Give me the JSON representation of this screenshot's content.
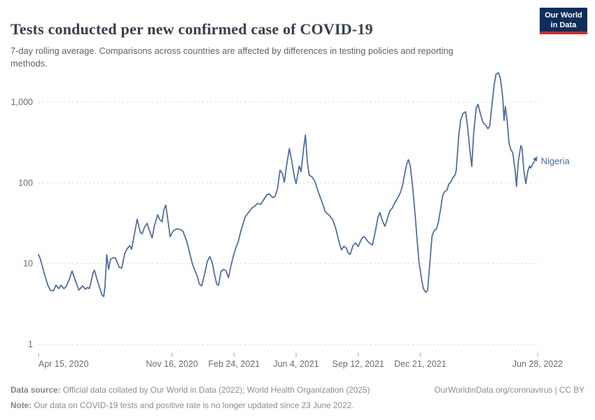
{
  "header": {
    "title": "Tests conducted per new confirmed case of COVID-19",
    "subtitle": "7-day rolling average. Comparisons across countries are affected by differences in testing policies and reporting methods."
  },
  "logo": {
    "line1": "Our World",
    "line2": "in Data"
  },
  "footer": {
    "source_label": "Data source:",
    "source_text": " Official data collated by Our World in Data (2022); World Health Organization (2025)",
    "credit": "OurWorldinData.org/coronavirus | CC BY",
    "note_label": "Note:",
    "note_text": " Our data on COVID-19 tests and positive rate is no longer updated since 23 June 2022."
  },
  "colors": {
    "line": "#4a69a0",
    "grid": "#d5d5d5",
    "tick_mark": "#a6a6a6",
    "tick_text": "#6b6d71",
    "logo_bg": "#0d2e5b",
    "logo_bar": "#c62f31"
  },
  "chart_data": {
    "type": "line",
    "title": "Tests conducted per new confirmed case of COVID-19",
    "xlabel": "",
    "ylabel": "",
    "y_scale": "log",
    "ylim": [
      1,
      2500
    ],
    "grid": "dashed-horizontal",
    "legend_position": "end-of-line-label",
    "x_start_date": "2020-04-15",
    "x_end_date": "2022-06-28",
    "y_ticks": [
      {
        "value": 1,
        "label": "1"
      },
      {
        "value": 10,
        "label": "10"
      },
      {
        "value": 100,
        "label": "100"
      },
      {
        "value": 1000,
        "label": "1,000"
      }
    ],
    "x_ticks": [
      {
        "day": 0,
        "label": "Apr 15, 2020"
      },
      {
        "day": 215,
        "label": "Nov 16, 2020"
      },
      {
        "day": 315,
        "label": "Feb 24, 2021"
      },
      {
        "day": 415,
        "label": "Jun 4, 2021"
      },
      {
        "day": 515,
        "label": "Sep 12, 2021"
      },
      {
        "day": 615,
        "label": "Dec 21, 2021"
      },
      {
        "day": 804,
        "label": "Jun 28, 2022"
      }
    ],
    "series": [
      {
        "name": "Nigeria",
        "points_format": [
          "days_since_2020-04-15",
          "tests_per_confirmed_case"
        ],
        "points": [
          [
            0,
            12.9
          ],
          [
            3,
            11.4
          ],
          [
            9,
            7.7
          ],
          [
            15,
            5.4
          ],
          [
            19,
            4.7
          ],
          [
            24,
            4.6
          ],
          [
            28,
            5.4
          ],
          [
            33,
            4.9
          ],
          [
            36,
            5.4
          ],
          [
            41,
            4.9
          ],
          [
            45,
            5.3
          ],
          [
            50,
            6.5
          ],
          [
            54,
            8.1
          ],
          [
            60,
            6
          ],
          [
            65,
            4.7
          ],
          [
            71,
            5.3
          ],
          [
            76,
            4.8
          ],
          [
            79,
            5.1
          ],
          [
            82,
            4.9
          ],
          [
            88,
            7.7
          ],
          [
            90,
            8.3
          ],
          [
            94,
            6.5
          ],
          [
            97,
            5.5
          ],
          [
            102,
            4.1
          ],
          [
            105,
            3.9
          ],
          [
            107,
            5.1
          ],
          [
            110,
            12.9
          ],
          [
            113,
            8.5
          ],
          [
            116,
            11.4
          ],
          [
            121,
            11.9
          ],
          [
            124,
            11.7
          ],
          [
            130,
            9
          ],
          [
            134,
            8.8
          ],
          [
            139,
            13.4
          ],
          [
            143,
            15.4
          ],
          [
            147,
            16.7
          ],
          [
            150,
            15.1
          ],
          [
            155,
            24.4
          ],
          [
            159,
            35.6
          ],
          [
            164,
            24.4
          ],
          [
            167,
            23.4
          ],
          [
            171,
            28.6
          ],
          [
            175,
            31.6
          ],
          [
            178,
            26.4
          ],
          [
            183,
            20.8
          ],
          [
            187,
            29.9
          ],
          [
            192,
            40.3
          ],
          [
            195,
            35.6
          ],
          [
            199,
            33
          ],
          [
            202,
            46.2
          ],
          [
            205,
            53.3
          ],
          [
            209,
            32.3
          ],
          [
            212,
            21.6
          ],
          [
            217,
            25.4
          ],
          [
            222,
            27
          ],
          [
            229,
            26.4
          ],
          [
            233,
            25
          ],
          [
            239,
            18.8
          ],
          [
            243,
            14
          ],
          [
            248,
            9.9
          ],
          [
            252,
            8.2
          ],
          [
            256,
            6.9
          ],
          [
            259,
            5.6
          ],
          [
            263,
            5.3
          ],
          [
            268,
            7.7
          ],
          [
            272,
            10.7
          ],
          [
            276,
            12.2
          ],
          [
            280,
            10.3
          ],
          [
            283,
            7.7
          ],
          [
            287,
            5.6
          ],
          [
            290,
            5.4
          ],
          [
            294,
            8
          ],
          [
            298,
            8.5
          ],
          [
            302,
            8.2
          ],
          [
            306,
            6.7
          ],
          [
            310,
            9.4
          ],
          [
            314,
            12.6
          ],
          [
            318,
            15.8
          ],
          [
            322,
            19
          ],
          [
            326,
            25.4
          ],
          [
            333,
            38.1
          ],
          [
            338,
            42.7
          ],
          [
            344,
            49.1
          ],
          [
            349,
            52.2
          ],
          [
            353,
            55.5
          ],
          [
            358,
            54.4
          ],
          [
            363,
            62.3
          ],
          [
            368,
            71.7
          ],
          [
            372,
            73.2
          ],
          [
            377,
            66
          ],
          [
            381,
            68
          ],
          [
            385,
            84.3
          ],
          [
            389,
            144
          ],
          [
            393,
            130
          ],
          [
            396,
            102
          ],
          [
            399,
            153
          ],
          [
            404,
            267
          ],
          [
            408,
            187
          ],
          [
            412,
            120
          ],
          [
            415,
            98
          ],
          [
            420,
            162
          ],
          [
            423,
            138
          ],
          [
            427,
            267
          ],
          [
            430,
            392
          ],
          [
            433,
            184
          ],
          [
            436,
            125
          ],
          [
            441,
            118
          ],
          [
            445,
            105
          ],
          [
            451,
            76
          ],
          [
            457,
            57
          ],
          [
            462,
            44
          ],
          [
            468,
            40
          ],
          [
            474,
            35
          ],
          [
            479,
            27
          ],
          [
            485,
            17.5
          ],
          [
            488,
            14.8
          ],
          [
            492,
            16.5
          ],
          [
            496,
            15.5
          ],
          [
            499,
            13.5
          ],
          [
            502,
            13
          ],
          [
            507,
            17
          ],
          [
            511,
            18.1
          ],
          [
            515,
            16.3
          ],
          [
            521,
            20.8
          ],
          [
            525,
            21.6
          ],
          [
            529,
            19.5
          ],
          [
            532,
            18.3
          ],
          [
            538,
            17
          ],
          [
            543,
            26
          ],
          [
            547,
            38
          ],
          [
            550,
            43
          ],
          [
            554,
            34
          ],
          [
            558,
            29
          ],
          [
            562,
            36
          ],
          [
            566,
            45
          ],
          [
            570,
            49
          ],
          [
            574,
            57
          ],
          [
            578,
            64
          ],
          [
            582,
            73
          ],
          [
            586,
            90
          ],
          [
            590,
            130
          ],
          [
            593,
            170
          ],
          [
            596,
            194
          ],
          [
            599,
            160
          ],
          [
            603,
            84
          ],
          [
            607,
            38
          ],
          [
            610,
            19
          ],
          [
            613,
            10.4
          ],
          [
            617,
            6.5
          ],
          [
            620,
            4.9
          ],
          [
            624,
            4.4
          ],
          [
            627,
            4.7
          ],
          [
            630,
            9.4
          ],
          [
            634,
            22
          ],
          [
            637,
            25.4
          ],
          [
            641,
            27
          ],
          [
            644,
            32
          ],
          [
            648,
            49
          ],
          [
            651,
            69
          ],
          [
            654,
            78
          ],
          [
            658,
            81
          ],
          [
            661,
            97
          ],
          [
            664,
            102
          ],
          [
            668,
            118
          ],
          [
            671,
            125
          ],
          [
            673,
            144
          ],
          [
            677,
            392
          ],
          [
            680,
            595
          ],
          [
            684,
            730
          ],
          [
            688,
            760
          ],
          [
            691,
            510
          ],
          [
            695,
            253
          ],
          [
            698,
            160
          ],
          [
            701,
            416
          ],
          [
            705,
            837
          ],
          [
            708,
            942
          ],
          [
            712,
            712
          ],
          [
            716,
            559
          ],
          [
            721,
            510
          ],
          [
            724,
            469
          ],
          [
            727,
            510
          ],
          [
            731,
            1020
          ],
          [
            734,
            1620
          ],
          [
            737,
            2230
          ],
          [
            741,
            2320
          ],
          [
            744,
            1975
          ],
          [
            748,
            1130
          ],
          [
            750,
            595
          ],
          [
            752,
            888
          ],
          [
            755,
            595
          ],
          [
            758,
            309
          ],
          [
            761,
            257
          ],
          [
            764,
            237
          ],
          [
            768,
            138
          ],
          [
            770,
            90
          ],
          [
            773,
            187
          ],
          [
            777,
            290
          ],
          [
            779,
            267
          ],
          [
            782,
            138
          ],
          [
            785,
            98
          ],
          [
            788,
            138
          ],
          [
            791,
            162
          ],
          [
            793,
            153
          ],
          [
            797,
            176
          ],
          [
            799,
            187
          ]
        ]
      }
    ]
  }
}
